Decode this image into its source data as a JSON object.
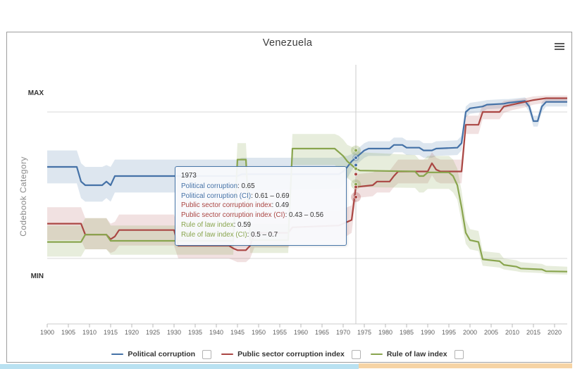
{
  "header": {
    "title": "Venezuela"
  },
  "y_axis": {
    "title": "Codebook Category",
    "max_label": "MAX",
    "min_label": "MIN"
  },
  "tooltip": {
    "title": "1973",
    "rows": [
      {
        "label": "Political corruption",
        "value": "0.65",
        "color": "#4572A7"
      },
      {
        "label": "Political corruption (CI)",
        "value": "0.61 – 0.69",
        "color": "#4572A7"
      },
      {
        "label": "Public sector corruption index",
        "value": "0.49",
        "color": "#AA4643"
      },
      {
        "label": "Public sector corruption index (CI)",
        "value": "0.43 – 0.56",
        "color": "#AA4643"
      },
      {
        "label": "Rule of law index",
        "value": "0.59",
        "color": "#89A54E"
      },
      {
        "label": "Rule of law index (CI)",
        "value": "0.5 – 0.7",
        "color": "#89A54E"
      }
    ]
  },
  "legend": {
    "items": [
      {
        "label": "Political corruption",
        "color": "#4572A7"
      },
      {
        "label": "Public sector corruption index",
        "color": "#AA4643"
      },
      {
        "label": "Rule of law index",
        "color": "#89A54E"
      }
    ]
  },
  "chart_data": {
    "type": "line",
    "title": "Venezuela",
    "ylabel": "Codebook Category",
    "x_axis": {
      "min": 1900,
      "max": 2023,
      "tick_interval": 5,
      "ticks": [
        1900,
        1905,
        1910,
        1915,
        1920,
        1925,
        1930,
        1935,
        1940,
        1945,
        1950,
        1955,
        1960,
        1965,
        1970,
        1975,
        1980,
        1985,
        1990,
        1995,
        2000,
        2005,
        2010,
        2015,
        2020
      ]
    },
    "y_axis": {
      "min": 0,
      "max": 1,
      "min_label": "MIN",
      "max_label": "MAX",
      "gridlines_at": [
        0.1,
        0.9
      ]
    },
    "crosshair": {
      "year": 1973,
      "markers": [
        {
          "series": "rule_of_law_index",
          "value": 0.69,
          "halo": 7
        },
        {
          "series": "political_corruption",
          "value": 0.65,
          "halo": 5
        },
        {
          "series": "political_corruption",
          "value": 0.61,
          "halo": 0
        },
        {
          "series": "rule_of_law_index",
          "value": 0.59,
          "halo": 0
        },
        {
          "series": "public_sector_corruption_index",
          "value": 0.56,
          "halo": 0
        },
        {
          "series": "rule_of_law_index",
          "value": 0.505,
          "halo": 7
        },
        {
          "series": "public_sector_corruption_index",
          "value": 0.49,
          "halo": 0
        },
        {
          "series": "public_sector_corruption_index",
          "value": 0.435,
          "halo": 7
        }
      ]
    },
    "series": [
      {
        "id": "political_corruption",
        "name": "Political corruption",
        "color": "#4572A7",
        "band_opacity": 0.18,
        "points": [
          [
            1900,
            0.6,
            0.51,
            0.69
          ],
          [
            1907,
            0.6,
            0.51,
            0.69
          ],
          [
            1908,
            0.52,
            0.43,
            0.62
          ],
          [
            1909,
            0.5,
            0.41,
            0.6
          ],
          [
            1913,
            0.5,
            0.41,
            0.6
          ],
          [
            1914,
            0.52,
            0.43,
            0.61
          ],
          [
            1915,
            0.5,
            0.41,
            0.6
          ],
          [
            1916,
            0.55,
            0.46,
            0.64
          ],
          [
            1945,
            0.55,
            0.46,
            0.64
          ],
          [
            1946,
            0.56,
            0.47,
            0.65
          ],
          [
            1969,
            0.56,
            0.48,
            0.65
          ],
          [
            1970,
            0.575,
            0.5,
            0.66
          ],
          [
            1971,
            0.6,
            0.54,
            0.66
          ],
          [
            1972,
            0.63,
            0.58,
            0.67
          ],
          [
            1973,
            0.65,
            0.61,
            0.69
          ],
          [
            1974,
            0.67,
            0.63,
            0.71
          ],
          [
            1975,
            0.69,
            0.65,
            0.73
          ],
          [
            1976,
            0.7,
            0.66,
            0.74
          ],
          [
            1981,
            0.7,
            0.66,
            0.74
          ],
          [
            1982,
            0.72,
            0.68,
            0.76
          ],
          [
            1984,
            0.72,
            0.68,
            0.76
          ],
          [
            1985,
            0.705,
            0.665,
            0.745
          ],
          [
            1988,
            0.705,
            0.665,
            0.745
          ],
          [
            1989,
            0.69,
            0.65,
            0.73
          ],
          [
            1991,
            0.69,
            0.65,
            0.73
          ],
          [
            1992,
            0.7,
            0.66,
            0.74
          ],
          [
            1997,
            0.705,
            0.665,
            0.745
          ],
          [
            1998,
            0.73,
            0.69,
            0.77
          ],
          [
            1999,
            0.9,
            0.87,
            0.93
          ],
          [
            2000,
            0.92,
            0.89,
            0.95
          ],
          [
            2003,
            0.93,
            0.9,
            0.96
          ],
          [
            2004,
            0.94,
            0.915,
            0.965
          ],
          [
            2008,
            0.945,
            0.92,
            0.97
          ],
          [
            2009,
            0.95,
            0.925,
            0.97
          ],
          [
            2013,
            0.96,
            0.935,
            0.98
          ],
          [
            2014,
            0.93,
            0.9,
            0.955
          ],
          [
            2015,
            0.85,
            0.82,
            0.88
          ],
          [
            2016,
            0.85,
            0.82,
            0.88
          ],
          [
            2017,
            0.93,
            0.9,
            0.955
          ],
          [
            2018,
            0.955,
            0.93,
            0.975
          ],
          [
            2023,
            0.955,
            0.93,
            0.975
          ]
        ]
      },
      {
        "id": "public_sector_corruption_index",
        "name": "Public sector corruption index",
        "color": "#AA4643",
        "band_opacity": 0.16,
        "points": [
          [
            1900,
            0.29,
            0.2,
            0.38
          ],
          [
            1908,
            0.29,
            0.2,
            0.38
          ],
          [
            1909,
            0.23,
            0.15,
            0.32
          ],
          [
            1914,
            0.23,
            0.15,
            0.32
          ],
          [
            1915,
            0.205,
            0.13,
            0.29
          ],
          [
            1916,
            0.22,
            0.14,
            0.3
          ],
          [
            1917,
            0.255,
            0.17,
            0.34
          ],
          [
            1930,
            0.255,
            0.17,
            0.34
          ],
          [
            1931,
            0.17,
            0.1,
            0.25
          ],
          [
            1943,
            0.17,
            0.1,
            0.25
          ],
          [
            1944,
            0.155,
            0.09,
            0.23
          ],
          [
            1945,
            0.145,
            0.08,
            0.22
          ],
          [
            1947,
            0.145,
            0.08,
            0.22
          ],
          [
            1948,
            0.17,
            0.1,
            0.25
          ],
          [
            1949,
            0.24,
            0.16,
            0.32
          ],
          [
            1957,
            0.24,
            0.16,
            0.32
          ],
          [
            1958,
            0.27,
            0.19,
            0.35
          ],
          [
            1969,
            0.28,
            0.2,
            0.36
          ],
          [
            1970,
            0.29,
            0.21,
            0.37
          ],
          [
            1972,
            0.31,
            0.24,
            0.39
          ],
          [
            1973,
            0.49,
            0.43,
            0.56
          ],
          [
            1977,
            0.5,
            0.44,
            0.57
          ],
          [
            1978,
            0.52,
            0.46,
            0.58
          ],
          [
            1981,
            0.52,
            0.46,
            0.58
          ],
          [
            1982,
            0.55,
            0.49,
            0.61
          ],
          [
            1983,
            0.575,
            0.51,
            0.64
          ],
          [
            1990,
            0.575,
            0.51,
            0.64
          ],
          [
            1991,
            0.62,
            0.555,
            0.68
          ],
          [
            1992,
            0.585,
            0.52,
            0.65
          ],
          [
            1993,
            0.575,
            0.51,
            0.64
          ],
          [
            1998,
            0.575,
            0.51,
            0.64
          ],
          [
            1999,
            0.83,
            0.78,
            0.88
          ],
          [
            2002,
            0.83,
            0.78,
            0.88
          ],
          [
            2003,
            0.9,
            0.86,
            0.94
          ],
          [
            2007,
            0.9,
            0.86,
            0.94
          ],
          [
            2008,
            0.93,
            0.895,
            0.96
          ],
          [
            2010,
            0.94,
            0.91,
            0.965
          ],
          [
            2013,
            0.955,
            0.925,
            0.975
          ],
          [
            2015,
            0.965,
            0.94,
            0.985
          ],
          [
            2018,
            0.975,
            0.95,
            0.99
          ],
          [
            2023,
            0.975,
            0.95,
            0.99
          ]
        ]
      },
      {
        "id": "rule_of_law_index",
        "name": "Rule of law index",
        "color": "#89A54E",
        "band_opacity": 0.2,
        "points": [
          [
            1900,
            0.19,
            0.11,
            0.28
          ],
          [
            1908,
            0.19,
            0.11,
            0.28
          ],
          [
            1909,
            0.23,
            0.15,
            0.32
          ],
          [
            1914,
            0.23,
            0.15,
            0.32
          ],
          [
            1915,
            0.196,
            0.12,
            0.28
          ],
          [
            1944,
            0.196,
            0.12,
            0.28
          ],
          [
            1945,
            0.64,
            0.54,
            0.73
          ],
          [
            1947,
            0.64,
            0.54,
            0.73
          ],
          [
            1948,
            0.2,
            0.13,
            0.29
          ],
          [
            1957,
            0.2,
            0.13,
            0.29
          ],
          [
            1958,
            0.7,
            0.61,
            0.78
          ],
          [
            1968,
            0.7,
            0.61,
            0.78
          ],
          [
            1969,
            0.68,
            0.59,
            0.77
          ],
          [
            1970,
            0.66,
            0.57,
            0.75
          ],
          [
            1971,
            0.63,
            0.54,
            0.72
          ],
          [
            1972,
            0.61,
            0.52,
            0.71
          ],
          [
            1973,
            0.59,
            0.5,
            0.7
          ],
          [
            1974,
            0.58,
            0.49,
            0.68
          ],
          [
            1987,
            0.575,
            0.485,
            0.665
          ],
          [
            1988,
            0.55,
            0.46,
            0.64
          ],
          [
            1989,
            0.55,
            0.46,
            0.64
          ],
          [
            1990,
            0.57,
            0.48,
            0.66
          ],
          [
            1995,
            0.57,
            0.48,
            0.66
          ],
          [
            1996,
            0.55,
            0.46,
            0.64
          ],
          [
            1997,
            0.5,
            0.42,
            0.59
          ],
          [
            1998,
            0.38,
            0.3,
            0.47
          ],
          [
            1999,
            0.24,
            0.18,
            0.31
          ],
          [
            2000,
            0.2,
            0.15,
            0.26
          ],
          [
            2002,
            0.19,
            0.14,
            0.25
          ],
          [
            2003,
            0.095,
            0.06,
            0.14
          ],
          [
            2007,
            0.085,
            0.05,
            0.13
          ],
          [
            2008,
            0.065,
            0.04,
            0.1
          ],
          [
            2011,
            0.055,
            0.03,
            0.09
          ],
          [
            2012,
            0.045,
            0.025,
            0.08
          ],
          [
            2017,
            0.04,
            0.02,
            0.07
          ],
          [
            2018,
            0.03,
            0.015,
            0.06
          ],
          [
            2023,
            0.028,
            0.012,
            0.055
          ]
        ]
      }
    ]
  }
}
